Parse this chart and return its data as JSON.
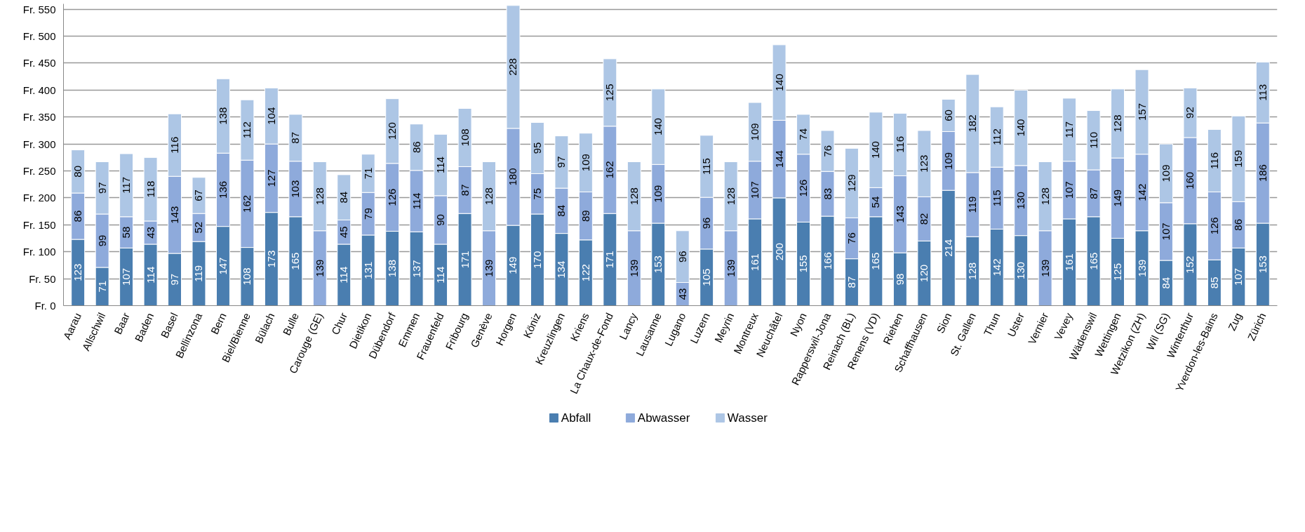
{
  "chart_data": {
    "type": "bar",
    "stacked": true,
    "data_labels": true,
    "grid": "y",
    "legend": "bottom",
    "categories": [
      "Aarau",
      "Allschwil",
      "Baar",
      "Baden",
      "Basel",
      "Bellinzona",
      "Bern",
      "Biel/Bienne",
      "Bülach",
      "Bulle",
      "Carouge (GE)",
      "Chur",
      "Dietikon",
      "Dübendorf",
      "Emmen",
      "Frauenfeld",
      "Fribourg",
      "Genève",
      "Horgen",
      "Köniz",
      "Kreuzlingen",
      "Kriens",
      "La Chaux-de-Fond",
      "Lancy",
      "Lausanne",
      "Lugano",
      "Luzern",
      "Meyrin",
      "Montreux",
      "Neuchâtel",
      "Nyon",
      "Rapperswil-Jona",
      "Reinach (BL)",
      "Renens (VD)",
      "Riehen",
      "Schaffhausen",
      "Sion",
      "St. Gallen",
      "Thun",
      "Uster",
      "Vernier",
      "Vevey",
      "Wädenswil",
      "Wettingen",
      "Wetzikon (ZH)",
      "Wil (SG)",
      "Winterthur",
      "Yverdon-les-Bains",
      "Zug",
      "Zürich"
    ],
    "series": [
      {
        "name": "Abfall",
        "color": "#4a7eb0",
        "values": [
          123,
          71,
          107,
          114,
          97,
          119,
          147,
          108,
          173,
          165,
          null,
          114,
          131,
          138,
          137,
          114,
          171,
          null,
          149,
          170,
          134,
          122,
          171,
          null,
          153,
          null,
          105,
          null,
          161,
          200,
          155,
          166,
          87,
          165,
          98,
          120,
          214,
          128,
          142,
          130,
          null,
          161,
          165,
          125,
          139,
          84,
          152,
          85,
          107,
          153
        ]
      },
      {
        "name": "Abwasser",
        "color": "#8eaadb",
        "values": [
          86,
          99,
          58,
          43,
          143,
          52,
          136,
          162,
          127,
          103,
          139,
          45,
          79,
          126,
          114,
          90,
          87,
          139,
          180,
          75,
          84,
          89,
          162,
          139,
          109,
          43,
          96,
          139,
          107,
          144,
          126,
          83,
          76,
          54,
          143,
          82,
          109,
          119,
          115,
          130,
          139,
          107,
          87,
          149,
          142,
          107,
          160,
          126,
          86,
          186
        ]
      },
      {
        "name": "Wasser",
        "color": "#adc6e5",
        "values": [
          80,
          97,
          117,
          118,
          116,
          67,
          138,
          112,
          104,
          87,
          128,
          84,
          71,
          120,
          86,
          114,
          108,
          128,
          228,
          95,
          97,
          109,
          125,
          128,
          140,
          96,
          115,
          128,
          109,
          140,
          74,
          76,
          129,
          140,
          116,
          123,
          60,
          182,
          112,
          140,
          128,
          117,
          110,
          128,
          157,
          109,
          92,
          116,
          159,
          113
        ]
      }
    ],
    "ylim": [
      0,
      560
    ],
    "yticks": [
      {
        "value": 0,
        "label": "Fr. 0"
      },
      {
        "value": 50,
        "label": "Fr. 50"
      },
      {
        "value": 100,
        "label": "Fr. 100"
      },
      {
        "value": 150,
        "label": "Fr. 150"
      },
      {
        "value": 200,
        "label": "Fr. 200"
      },
      {
        "value": 250,
        "label": "Fr. 250"
      },
      {
        "value": 300,
        "label": "Fr. 300"
      },
      {
        "value": 350,
        "label": "Fr. 350"
      },
      {
        "value": 400,
        "label": "Fr. 400"
      },
      {
        "value": 450,
        "label": "Fr. 450"
      },
      {
        "value": 500,
        "label": "Fr. 500"
      },
      {
        "value": 550,
        "label": "Fr. 550"
      }
    ]
  }
}
